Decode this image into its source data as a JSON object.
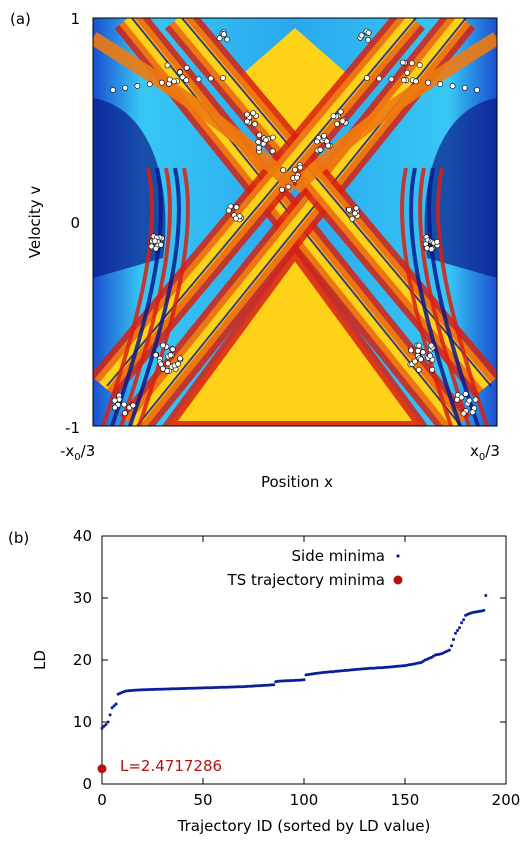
{
  "panel_a": {
    "label": "(a)",
    "ylabel": "Velocity  v",
    "xlabel": "Position  x",
    "y_ticks": [
      "1",
      "0",
      "-1"
    ],
    "x_left_main": "-x",
    "x_left_sub": "0",
    "x_left_tail": "/3",
    "x_right_main": "x",
    "x_right_sub": "0",
    "x_right_tail": "/3",
    "colors": {
      "deep": "#0a1a8c",
      "mid": "#1f6fe0",
      "light": "#38c7f5",
      "red": "#d92010",
      "orange": "#f07a10",
      "yellow": "#ffd21a"
    }
  },
  "panel_b": {
    "label": "(b)",
    "legend_side": "Side minima",
    "legend_ts": "TS trajectory minima",
    "annotation": "L=2.4717286",
    "colors": {
      "side": "#0a1f9a",
      "ts": "#b5120e"
    }
  },
  "chart_data": [
    {
      "type": "heatmap",
      "title": "",
      "xlabel": "Position  x",
      "ylabel": "Velocity  v",
      "xlim": [
        "-x0/3",
        "x0/3"
      ],
      "ylim": [
        -1,
        1
      ],
      "overlay": "white markers at local minima"
    },
    {
      "type": "scatter",
      "title": "",
      "xlabel": "Trajectory ID  (sorted by LD value)",
      "ylabel": "LD",
      "xlim": [
        0,
        200
      ],
      "ylim": [
        0,
        40
      ],
      "x_ticks": [
        0,
        50,
        100,
        150,
        200
      ],
      "y_ticks": [
        0,
        10,
        20,
        30,
        40
      ],
      "legend_position": "top-right",
      "series": [
        {
          "name": "Side minima",
          "x": [
            0,
            1,
            2,
            3,
            5,
            6,
            7,
            8,
            10,
            12,
            15,
            20,
            30,
            40,
            50,
            60,
            70,
            80,
            85,
            86,
            88,
            95,
            100,
            101,
            105,
            110,
            120,
            130,
            140,
            150,
            155,
            158,
            160,
            163,
            165,
            168,
            170,
            172,
            173,
            174,
            175,
            177,
            178,
            179,
            180,
            182,
            184,
            186,
            188,
            189,
            190
          ],
          "y": [
            9.0,
            9.3,
            9.6,
            10.0,
            12.3,
            12.6,
            12.9,
            14.5,
            14.8,
            15.0,
            15.1,
            15.2,
            15.3,
            15.4,
            15.5,
            15.6,
            15.7,
            15.9,
            16.0,
            16.5,
            16.6,
            16.7,
            16.8,
            17.6,
            17.8,
            18.0,
            18.3,
            18.6,
            18.8,
            19.1,
            19.4,
            19.6,
            20.0,
            20.4,
            20.8,
            21.0,
            21.3,
            21.6,
            22.3,
            23.3,
            24.3,
            25.2,
            26.0,
            26.5,
            27.2,
            27.5,
            27.7,
            27.8,
            27.9,
            28.0,
            30.4
          ]
        },
        {
          "name": "TS trajectory minima",
          "x": [
            0
          ],
          "y": [
            2.47
          ]
        }
      ]
    }
  ]
}
